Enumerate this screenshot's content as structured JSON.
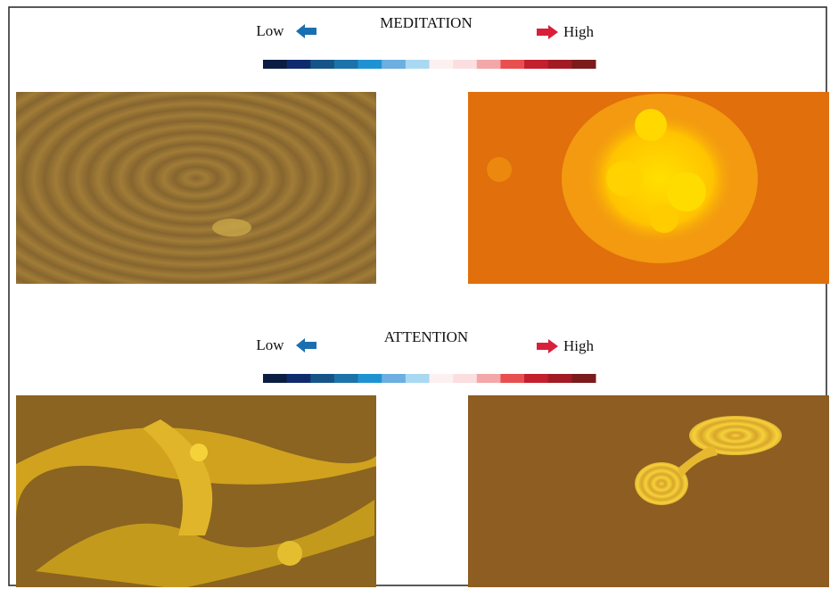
{
  "panels": [
    {
      "title": "MEDITATION",
      "low_label": "Low",
      "high_label": "High"
    },
    {
      "title": "ATTENTION",
      "low_label": "Low",
      "high_label": "High"
    }
  ],
  "colorbar": {
    "colors": [
      "#0b1d42",
      "#0f2b6e",
      "#165488",
      "#1b73aa",
      "#1f93d2",
      "#6cafe0",
      "#a9d9f2",
      "#fcf0f1",
      "#fbdfe0",
      "#f3a7a8",
      "#e84f50",
      "#c31f2e",
      "#a21b24",
      "#7b1b1c"
    ]
  }
}
